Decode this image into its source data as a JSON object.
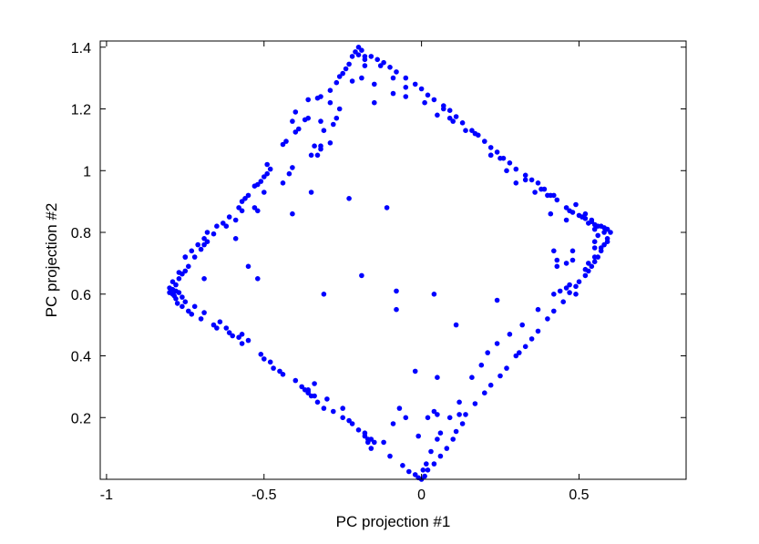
{
  "chart_data": {
    "type": "scatter",
    "title": "",
    "xlabel": "PC projection #1",
    "ylabel": "PC projection #2",
    "xlim": [
      -1.02,
      0.84
    ],
    "ylim": [
      0.0,
      1.42
    ],
    "xticks": [
      -1,
      -0.5,
      0,
      0.5
    ],
    "xtick_labels": [
      "-1",
      "-0.5",
      "0",
      "0.5"
    ],
    "yticks": [
      0.2,
      0.4,
      0.6,
      0.8,
      1.0,
      1.2,
      1.4
    ],
    "ytick_labels": [
      "0.2",
      "0.4",
      "0.6",
      "0.8",
      "1",
      "1.2",
      "1.4"
    ],
    "grid": false,
    "legend": "none",
    "marker_color": "#0000ff",
    "points": [
      [
        -0.2,
        1.4
      ],
      [
        -0.19,
        1.39
      ],
      [
        -0.21,
        1.385
      ],
      [
        -0.2,
        1.375
      ],
      [
        -0.18,
        1.37
      ],
      [
        -0.22,
        1.37
      ],
      [
        -0.23,
        1.345
      ],
      [
        -0.24,
        1.33
      ],
      [
        -0.25,
        1.315
      ],
      [
        -0.26,
        1.305
      ],
      [
        -0.27,
        1.285
      ],
      [
        -0.29,
        1.26
      ],
      [
        -0.32,
        1.24
      ],
      [
        -0.33,
        1.235
      ],
      [
        -0.36,
        1.17
      ],
      [
        -0.37,
        1.165
      ],
      [
        -0.39,
        1.135
      ],
      [
        -0.4,
        1.125
      ],
      [
        -0.43,
        1.095
      ],
      [
        -0.44,
        1.085
      ],
      [
        -0.48,
        1.005
      ],
      [
        -0.49,
        0.99
      ],
      [
        -0.5,
        0.98
      ],
      [
        -0.51,
        0.965
      ],
      [
        -0.52,
        0.955
      ],
      [
        -0.55,
        0.92
      ],
      [
        -0.56,
        0.91
      ],
      [
        -0.57,
        0.9
      ],
      [
        -0.58,
        0.88
      ],
      [
        -0.61,
        0.85
      ],
      [
        -0.63,
        0.83
      ],
      [
        -0.66,
        0.795
      ],
      [
        -0.68,
        0.77
      ],
      [
        -0.69,
        0.76
      ],
      [
        -0.7,
        0.745
      ],
      [
        -0.72,
        0.72
      ],
      [
        -0.74,
        0.69
      ],
      [
        -0.75,
        0.675
      ],
      [
        -0.76,
        0.665
      ],
      [
        -0.77,
        0.65
      ],
      [
        -0.78,
        0.63
      ],
      [
        -0.79,
        0.615
      ],
      [
        -0.8,
        0.605
      ],
      [
        -0.79,
        0.6
      ],
      [
        -0.785,
        0.595
      ],
      [
        -0.78,
        0.585
      ],
      [
        -0.775,
        0.57
      ],
      [
        -0.76,
        0.56
      ],
      [
        -0.74,
        0.545
      ],
      [
        -0.73,
        0.535
      ],
      [
        -0.7,
        0.52
      ],
      [
        -0.66,
        0.5
      ],
      [
        -0.65,
        0.49
      ],
      [
        -0.61,
        0.475
      ],
      [
        -0.6,
        0.465
      ],
      [
        -0.58,
        0.46
      ],
      [
        -0.57,
        0.44
      ],
      [
        -0.51,
        0.405
      ],
      [
        -0.5,
        0.39
      ],
      [
        -0.47,
        0.36
      ],
      [
        -0.44,
        0.34
      ],
      [
        -0.38,
        0.3
      ],
      [
        -0.37,
        0.29
      ],
      [
        -0.36,
        0.28
      ],
      [
        -0.35,
        0.27
      ],
      [
        -0.31,
        0.23
      ],
      [
        -0.25,
        0.2
      ],
      [
        -0.2,
        0.16
      ],
      [
        -0.15,
        0.12
      ],
      [
        -0.1,
        0.075
      ],
      [
        -0.06,
        0.045
      ],
      [
        -0.04,
        0.025
      ],
      [
        -0.02,
        0.015
      ],
      [
        -0.01,
        0.005
      ],
      [
        0.0,
        0.0
      ],
      [
        0.01,
        0.01
      ],
      [
        0.02,
        0.03
      ],
      [
        0.04,
        0.05
      ],
      [
        0.06,
        0.075
      ],
      [
        0.08,
        0.1
      ],
      [
        0.1,
        0.13
      ],
      [
        0.11,
        0.155
      ],
      [
        0.13,
        0.18
      ],
      [
        0.14,
        0.21
      ],
      [
        0.17,
        0.245
      ],
      [
        0.2,
        0.28
      ],
      [
        0.22,
        0.305
      ],
      [
        0.25,
        0.335
      ],
      [
        0.27,
        0.36
      ],
      [
        0.3,
        0.4
      ],
      [
        0.31,
        0.41
      ],
      [
        0.33,
        0.43
      ],
      [
        0.35,
        0.455
      ],
      [
        0.37,
        0.48
      ],
      [
        0.4,
        0.52
      ],
      [
        0.42,
        0.545
      ],
      [
        0.45,
        0.575
      ],
      [
        0.47,
        0.605
      ],
      [
        0.49,
        0.625
      ],
      [
        0.5,
        0.64
      ],
      [
        0.52,
        0.66
      ],
      [
        0.53,
        0.675
      ],
      [
        0.54,
        0.69
      ],
      [
        0.55,
        0.705
      ],
      [
        0.56,
        0.72
      ],
      [
        0.57,
        0.74
      ],
      [
        0.58,
        0.76
      ],
      [
        0.59,
        0.78
      ],
      [
        0.6,
        0.8
      ],
      [
        0.59,
        0.81
      ],
      [
        0.58,
        0.815
      ],
      [
        0.57,
        0.82
      ],
      [
        0.55,
        0.825
      ],
      [
        0.54,
        0.835
      ],
      [
        0.52,
        0.845
      ],
      [
        0.5,
        0.855
      ],
      [
        0.48,
        0.865
      ],
      [
        0.46,
        0.88
      ],
      [
        0.43,
        0.905
      ],
      [
        0.41,
        0.92
      ],
      [
        0.39,
        0.94
      ],
      [
        0.37,
        0.96
      ],
      [
        0.35,
        0.97
      ],
      [
        0.33,
        0.985
      ],
      [
        0.3,
        1.005
      ],
      [
        0.28,
        1.025
      ],
      [
        0.26,
        1.04
      ],
      [
        0.24,
        1.06
      ],
      [
        0.22,
        1.075
      ],
      [
        0.2,
        1.095
      ],
      [
        0.18,
        1.115
      ],
      [
        0.16,
        1.13
      ],
      [
        0.13,
        1.155
      ],
      [
        0.11,
        1.175
      ],
      [
        0.09,
        1.195
      ],
      [
        0.07,
        1.21
      ],
      [
        0.04,
        1.23
      ],
      [
        0.02,
        1.245
      ],
      [
        0.0,
        1.265
      ],
      [
        -0.02,
        1.28
      ],
      [
        -0.05,
        1.3
      ],
      [
        -0.08,
        1.32
      ],
      [
        -0.1,
        1.335
      ],
      [
        -0.12,
        1.35
      ],
      [
        -0.14,
        1.36
      ],
      [
        -0.16,
        1.37
      ],
      [
        -0.18,
        1.34
      ],
      [
        -0.19,
        1.3
      ],
      [
        -0.15,
        1.28
      ],
      [
        -0.09,
        1.25
      ],
      [
        -0.05,
        1.24
      ],
      [
        0.05,
        1.18
      ],
      [
        0.1,
        1.16
      ],
      [
        0.14,
        1.13
      ],
      [
        0.22,
        1.05
      ],
      [
        0.27,
        1.0
      ],
      [
        0.3,
        0.96
      ],
      [
        0.36,
        0.93
      ],
      [
        0.4,
        0.92
      ],
      [
        0.49,
        0.89
      ],
      [
        0.52,
        0.86
      ],
      [
        0.54,
        0.84
      ],
      [
        0.56,
        0.82
      ],
      [
        0.58,
        0.8
      ],
      [
        0.56,
        0.79
      ],
      [
        0.55,
        0.77
      ],
      [
        0.55,
        0.75
      ],
      [
        0.48,
        0.74
      ],
      [
        0.46,
        0.7
      ],
      [
        0.43,
        0.69
      ],
      [
        0.42,
        0.6
      ],
      [
        0.49,
        0.6
      ],
      [
        0.37,
        0.55
      ],
      [
        0.32,
        0.5
      ],
      [
        0.28,
        0.47
      ],
      [
        0.24,
        0.44
      ],
      [
        0.21,
        0.41
      ],
      [
        0.19,
        0.37
      ],
      [
        0.16,
        0.33
      ],
      [
        0.12,
        0.25
      ],
      [
        0.09,
        0.2
      ],
      [
        0.06,
        0.15
      ],
      [
        0.05,
        0.13
      ],
      [
        0.03,
        0.09
      ],
      [
        0.015,
        0.05
      ],
      [
        0.005,
        0.03
      ],
      [
        -0.16,
        0.1
      ],
      [
        -0.12,
        0.12
      ],
      [
        -0.09,
        0.18
      ],
      [
        -0.01,
        0.14
      ],
      [
        -0.05,
        0.2
      ],
      [
        0.02,
        0.2
      ],
      [
        0.05,
        0.21
      ],
      [
        -0.15,
        1.22
      ],
      [
        -0.29,
        1.22
      ],
      [
        -0.26,
        1.2
      ],
      [
        -0.27,
        1.17
      ],
      [
        -0.29,
        1.09
      ],
      [
        -0.32,
        1.07
      ],
      [
        -0.33,
        1.05
      ],
      [
        -0.41,
        1.01
      ],
      [
        -0.42,
        0.99
      ],
      [
        -0.44,
        0.96
      ],
      [
        -0.5,
        0.93
      ],
      [
        -0.53,
        0.88
      ],
      [
        -0.57,
        0.87
      ],
      [
        -0.59,
        0.84
      ],
      [
        -0.62,
        0.82
      ],
      [
        -0.65,
        0.82
      ],
      [
        -0.68,
        0.8
      ],
      [
        -0.69,
        0.78
      ],
      [
        -0.71,
        0.76
      ],
      [
        -0.73,
        0.74
      ],
      [
        -0.75,
        0.72
      ],
      [
        -0.77,
        0.67
      ],
      [
        -0.79,
        0.64
      ],
      [
        -0.8,
        0.62
      ],
      [
        -0.78,
        0.61
      ],
      [
        -0.77,
        0.605
      ],
      [
        -0.76,
        0.59
      ],
      [
        -0.75,
        0.575
      ],
      [
        -0.72,
        0.56
      ],
      [
        -0.69,
        0.54
      ],
      [
        -0.64,
        0.51
      ],
      [
        -0.62,
        0.49
      ],
      [
        -0.57,
        0.47
      ],
      [
        -0.55,
        0.45
      ],
      [
        -0.48,
        0.38
      ],
      [
        -0.45,
        0.35
      ],
      [
        -0.4,
        0.32
      ],
      [
        -0.36,
        0.285
      ],
      [
        -0.33,
        0.25
      ],
      [
        -0.28,
        0.22
      ],
      [
        -0.23,
        0.19
      ],
      [
        -0.34,
        0.31
      ],
      [
        -0.36,
        0.29
      ],
      [
        -0.34,
        0.27
      ],
      [
        -0.18,
        0.14
      ],
      [
        -0.17,
        0.12
      ],
      [
        -0.16,
        0.13
      ],
      [
        -0.4,
        1.19
      ],
      [
        -0.41,
        1.16
      ],
      [
        -0.49,
        1.02
      ],
      [
        -0.53,
        0.95
      ],
      [
        -0.52,
        0.87
      ],
      [
        -0.59,
        0.78
      ],
      [
        -0.52,
        0.65
      ],
      [
        -0.69,
        0.65
      ],
      [
        -0.75,
        0.72
      ],
      [
        -0.32,
        1.16
      ],
      [
        -0.28,
        1.15
      ],
      [
        -0.31,
        1.13
      ],
      [
        -0.34,
        1.08
      ],
      [
        -0.22,
        1.29
      ],
      [
        -0.18,
        1.36
      ],
      [
        -0.13,
        1.34
      ],
      [
        -0.09,
        1.3
      ],
      [
        -0.05,
        1.27
      ],
      [
        0.01,
        1.22
      ],
      [
        0.07,
        1.2
      ],
      [
        0.09,
        1.17
      ],
      [
        0.17,
        1.12
      ],
      [
        0.22,
        1.05
      ],
      [
        0.25,
        1.04
      ],
      [
        0.33,
        0.97
      ],
      [
        0.38,
        0.94
      ],
      [
        0.42,
        0.92
      ],
      [
        0.47,
        0.87
      ],
      [
        0.51,
        0.85
      ],
      [
        0.53,
        0.83
      ],
      [
        0.55,
        0.81
      ],
      [
        -0.41,
        0.86
      ],
      [
        -0.32,
        1.08
      ],
      [
        -0.36,
        1.23
      ],
      [
        -0.35,
        1.05
      ],
      [
        -0.55,
        0.69
      ],
      [
        -0.35,
        0.93
      ],
      [
        -0.23,
        0.91
      ],
      [
        -0.11,
        0.88
      ],
      [
        -0.31,
        0.6
      ],
      [
        -0.19,
        0.66
      ],
      [
        -0.08,
        0.61
      ],
      [
        -0.08,
        0.55
      ],
      [
        0.04,
        0.6
      ],
      [
        0.11,
        0.5
      ],
      [
        0.24,
        0.58
      ],
      [
        -0.02,
        0.35
      ],
      [
        0.05,
        0.33
      ],
      [
        0.12,
        0.21
      ],
      [
        0.04,
        0.22
      ],
      [
        -0.25,
        0.23
      ],
      [
        -0.3,
        0.26
      ],
      [
        -0.22,
        0.18
      ],
      [
        -0.18,
        0.15
      ],
      [
        -0.17,
        0.13
      ],
      [
        -0.07,
        0.23
      ],
      [
        0.41,
        0.86
      ],
      [
        0.46,
        0.84
      ],
      [
        0.42,
        0.74
      ],
      [
        0.43,
        0.71
      ],
      [
        0.48,
        0.71
      ],
      [
        0.52,
        0.68
      ],
      [
        0.53,
        0.7
      ],
      [
        0.44,
        0.61
      ],
      [
        0.46,
        0.62
      ],
      [
        0.47,
        0.63
      ],
      [
        0.55,
        0.72
      ],
      [
        0.57,
        0.75
      ],
      [
        0.59,
        0.77
      ]
    ]
  }
}
